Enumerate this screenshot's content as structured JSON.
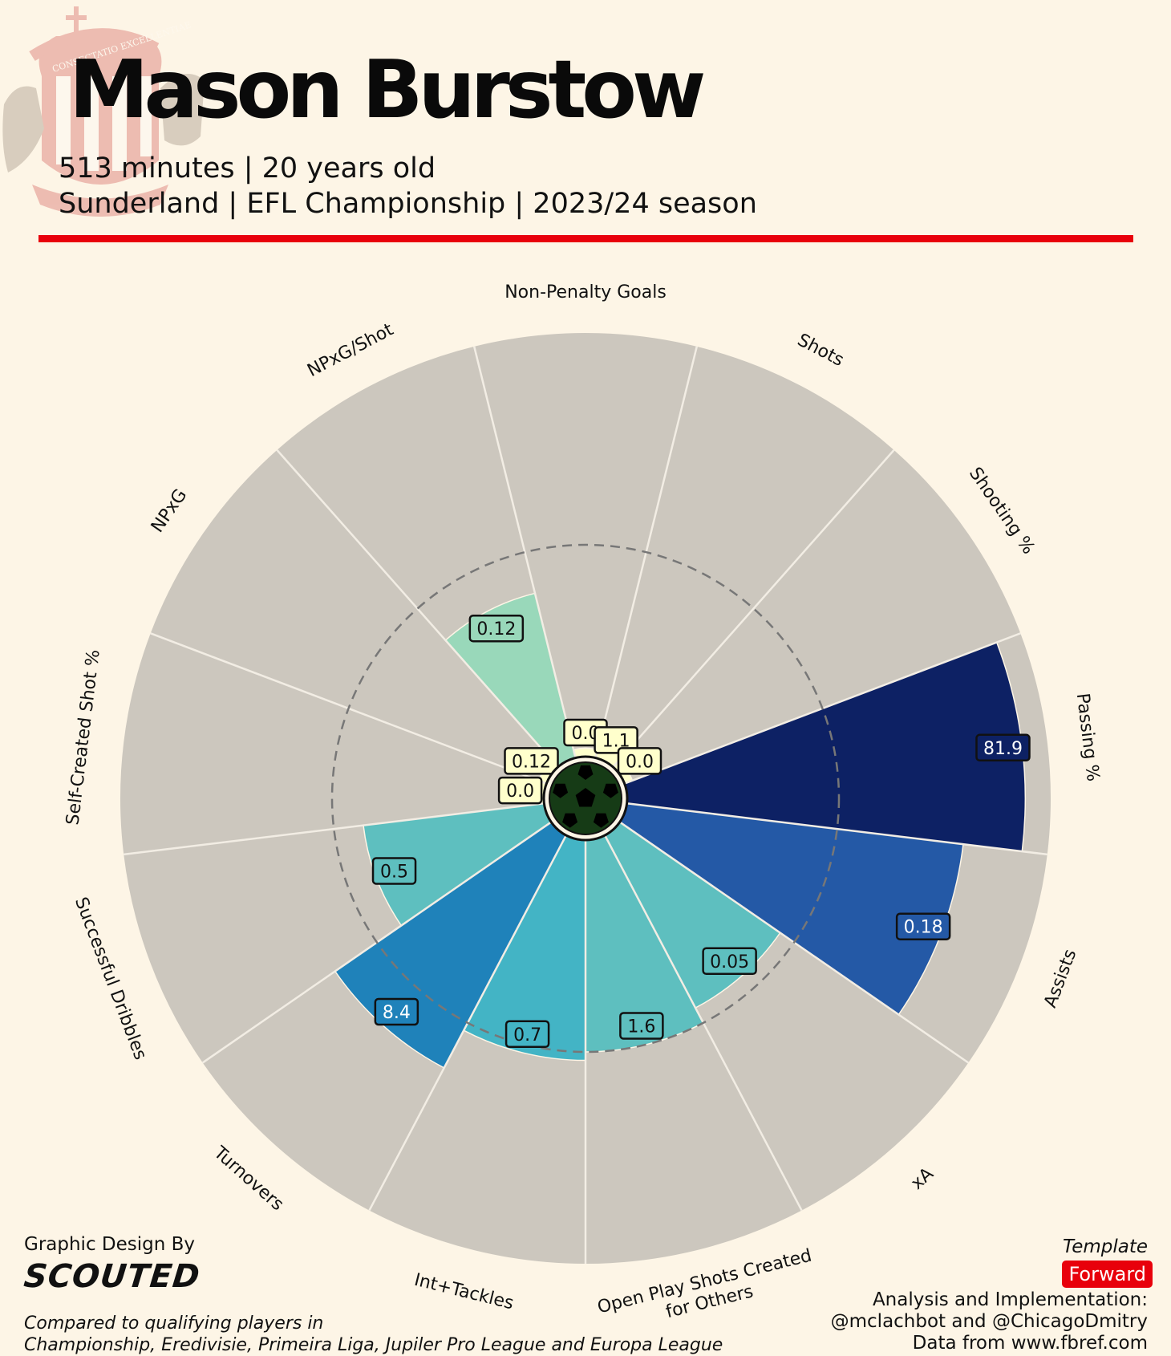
{
  "header": {
    "player_name": "Mason Burstow",
    "subtitle_line1": "513 minutes | 20 years old",
    "subtitle_line2": "Sunderland | EFL Championship | 2023/24 season",
    "crest_motto": "CONSECTATIO EXCELLENTIAE"
  },
  "colors": {
    "background": "#fdf5e6",
    "slice_background": "#ccc7be",
    "rule": "#e8000b",
    "template_badge": "#e8000b"
  },
  "chart_data": {
    "type": "radar-pizza",
    "parameters": [
      "Non-Penalty Goals",
      "Shots",
      "Shooting %",
      "Passing %",
      "Assists",
      "xA",
      "Open Play Shots Created for Others",
      "Int+Tackles",
      "Turnovers",
      "Successful Dribbles",
      "Self-Created Shot %",
      "NPxG",
      "NPxG/Shot"
    ],
    "values": [
      "0.0",
      "1.1",
      "0.0",
      "81.9",
      "0.18",
      "0.05",
      "1.6",
      "0.7",
      "8.4",
      "0.5",
      "0.0",
      "0.12",
      "0.12"
    ],
    "percentiles": [
      2,
      3,
      2,
      94,
      80,
      46,
      50,
      52,
      62,
      43,
      2,
      2,
      40
    ],
    "slice_colors": [
      "#ffffcc",
      "#ffffcc",
      "#ffffcc",
      "#0d2164",
      "#2459a6",
      "#5ebfbf",
      "#5ebfbf",
      "#43b4c5",
      "#1f82ba",
      "#5ebfbf",
      "#ffffcc",
      "#ffffcc",
      "#99d8ba"
    ],
    "label_text_colors": [
      "#111111",
      "#111111",
      "#111111",
      "#ffffff",
      "#ffffff",
      "#111111",
      "#111111",
      "#111111",
      "#ffffff",
      "#111111",
      "#111111",
      "#111111",
      "#111111"
    ],
    "reference_percentile": 50,
    "range": [
      0,
      100
    ]
  },
  "footer": {
    "design_by": "Graphic Design By",
    "logo_text": "SCOUTED",
    "compared_line1": "Compared to qualifying players in",
    "compared_line2": "Championship, Eredivisie, Primeira Liga, Jupiler Pro League and Europa League",
    "template_label": "Template",
    "template_name": "Forward",
    "credit_line1": "Analysis and Implementation:",
    "credit_line2": "@mclachbot and @ChicagoDmitry",
    "credit_line3": "Data from www.fbref.com"
  }
}
